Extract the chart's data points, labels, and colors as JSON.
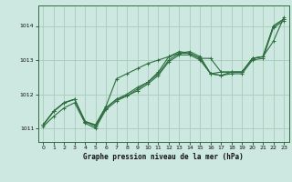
{
  "background_color": "#cce8e0",
  "grid_color": "#aaccbb",
  "line_color": "#2d6e3e",
  "xlabel": "Graphe pression niveau de la mer (hPa)",
  "xlim": [
    -0.5,
    23.5
  ],
  "ylim": [
    1010.6,
    1014.6
  ],
  "yticks": [
    1011,
    1012,
    1013,
    1014
  ],
  "xtick_labels": [
    "0",
    "1",
    "2",
    "3",
    "4",
    "5",
    "6",
    "7",
    "8",
    "9",
    "10",
    "11",
    "12",
    "13",
    "14",
    "15",
    "16",
    "17",
    "18",
    "19",
    "20",
    "21",
    "22",
    "23"
  ],
  "xticks": [
    0,
    1,
    2,
    3,
    4,
    5,
    6,
    7,
    8,
    9,
    10,
    11,
    12,
    13,
    14,
    15,
    16,
    17,
    18,
    19,
    20,
    21,
    22,
    23
  ],
  "series": [
    [
      1011.1,
      1011.5,
      1011.75,
      1011.85,
      1011.2,
      1011.1,
      1011.65,
      1012.45,
      1012.6,
      1012.75,
      1012.9,
      1013.0,
      1013.1,
      1013.2,
      1013.2,
      1013.05,
      1012.6,
      1012.65,
      1012.65,
      1012.65,
      1013.05,
      1013.1,
      1013.55,
      1014.25
    ],
    [
      1011.1,
      1011.5,
      1011.75,
      1011.85,
      1011.2,
      1011.1,
      1011.6,
      1011.85,
      1011.95,
      1012.15,
      1012.35,
      1012.65,
      1013.1,
      1013.25,
      1013.2,
      1013.05,
      1013.05,
      1012.65,
      1012.65,
      1012.65,
      1013.05,
      1013.1,
      1014.0,
      1014.2
    ],
    [
      1011.1,
      1011.5,
      1011.75,
      1011.85,
      1011.2,
      1011.05,
      1011.6,
      1011.85,
      1012.0,
      1012.2,
      1012.35,
      1012.6,
      1013.0,
      1013.2,
      1013.25,
      1013.1,
      1012.6,
      1012.55,
      1012.65,
      1012.65,
      1013.05,
      1013.1,
      1014.0,
      1014.2
    ],
    [
      1011.05,
      1011.35,
      1011.6,
      1011.75,
      1011.15,
      1011.0,
      1011.55,
      1011.8,
      1011.95,
      1012.1,
      1012.3,
      1012.55,
      1012.95,
      1013.15,
      1013.15,
      1013.0,
      1012.6,
      1012.55,
      1012.6,
      1012.6,
      1013.0,
      1013.05,
      1013.95,
      1014.15
    ]
  ]
}
